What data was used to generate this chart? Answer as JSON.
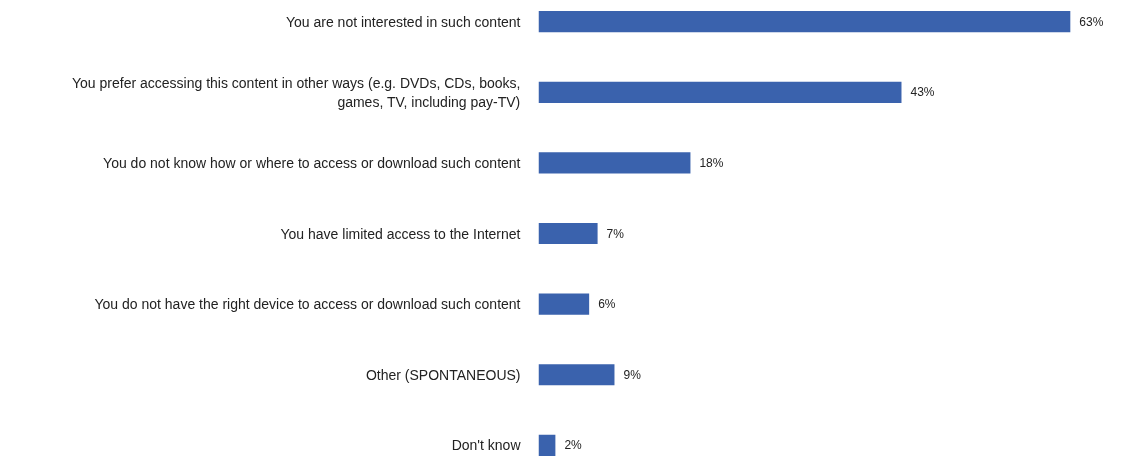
{
  "chart_data": {
    "type": "bar",
    "orientation": "horizontal",
    "categories": [
      "You are not interested in such content",
      "You prefer accessing this content in other ways (e.g. DVDs, CDs, books,\ngames, TV, including pay-TV)",
      "You do not know how or where to access or download such content",
      "You have limited access to the Internet",
      "You do not have the right device to access or download such content",
      "Other (SPONTANEOUS)",
      "Don't know"
    ],
    "values": [
      63,
      43,
      18,
      7,
      6,
      9,
      2
    ],
    "value_labels": [
      "63%",
      "43%",
      "18%",
      "7%",
      "6%",
      "9%",
      "2%"
    ],
    "color": "#3a62ad",
    "grid": false
  }
}
